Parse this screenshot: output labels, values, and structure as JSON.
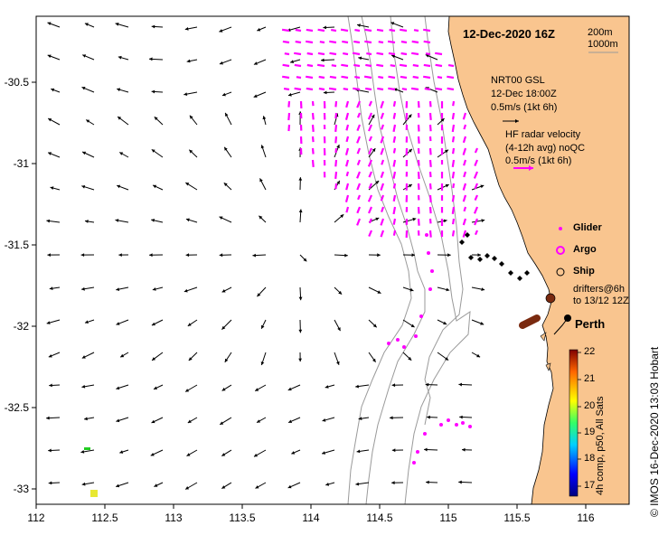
{
  "title": "12-Dec-2020 16Z",
  "depth_contours": [
    "200m",
    "1000m"
  ],
  "legend": {
    "model_name": "NRT00 GSL",
    "model_time": "12-Dec 18:00Z",
    "model_scale": "0.5m/s (1kt 6h)",
    "radar_title": "HF radar velocity",
    "radar_sub": "(4-12h avg) noQC",
    "radar_scale": "0.5m/s (1kt 6h)",
    "glider": "Glider",
    "argo": "Argo",
    "ship": "Ship",
    "drifters_line1": "drifters@6h",
    "drifters_line2": "to 13/12 12Z"
  },
  "place": "Perth",
  "colorbar": {
    "label": "4h comp, p50, All Sats",
    "ticks": [
      "17",
      "18",
      "19",
      "20",
      "21",
      "22"
    ],
    "min": 17,
    "max": 22
  },
  "axes": {
    "x_ticks": [
      "112",
      "112.5",
      "113",
      "113.5",
      "114",
      "114.5",
      "115",
      "115.5",
      "116"
    ],
    "y_ticks": [
      "-30.5",
      "-31",
      "-31.5",
      "-32",
      "-32.5",
      "-33"
    ]
  },
  "credit": "© IMOS 16-Dec-2020 13:03 Hobart",
  "colors": {
    "land": "#f9c58f",
    "radar": "#ff00ff",
    "arrow": "#000000",
    "contour": "#9a9a9a"
  }
}
